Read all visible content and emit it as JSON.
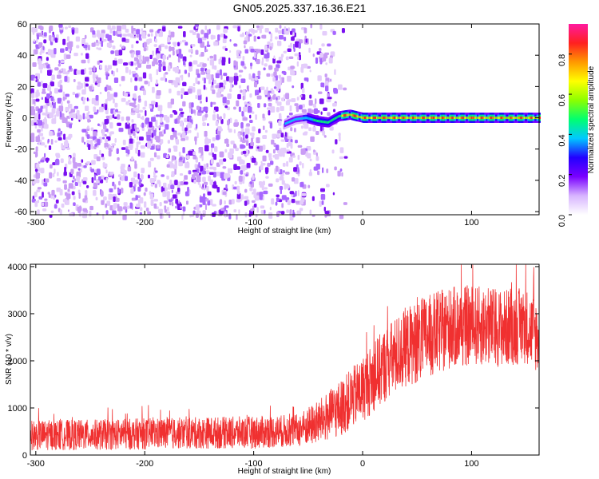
{
  "title": "GN05.2025.337.16.36.E21",
  "chart_data": [
    {
      "type": "heatmap",
      "xlabel": "Height of straight line (km)",
      "ylabel": "Frequency (Hz)",
      "xlim": [
        -305,
        162
      ],
      "ylim": [
        -62,
        60
      ],
      "xticks": [
        -300,
        -200,
        -100,
        0,
        100
      ],
      "yticks": [
        -60,
        -40,
        -20,
        0,
        20,
        40,
        60
      ],
      "colorbar": {
        "label": "Normalized spectral amplitude",
        "range": [
          0,
          0.95
        ],
        "ticks": [
          "0.0",
          "0.2",
          "0.4",
          "0.6",
          "0.8"
        ],
        "tick_values": [
          0.0,
          0.2,
          0.4,
          0.6,
          0.8
        ],
        "colors": [
          "#ffffff",
          "#d7b4ff",
          "#7a00ff",
          "#2200ff",
          "#00c8ff",
          "#00ff70",
          "#8cff00",
          "#ffff00",
          "#ff9900",
          "#ff2020",
          "#ff1aa0"
        ]
      },
      "ridge": [
        {
          "x": -72,
          "y": -4
        },
        {
          "x": -62,
          "y": -1
        },
        {
          "x": -52,
          "y": 0
        },
        {
          "x": -42,
          "y": -2
        },
        {
          "x": -32,
          "y": -3
        },
        {
          "x": -22,
          "y": 1
        },
        {
          "x": -12,
          "y": 2
        },
        {
          "x": 0,
          "y": 0
        },
        {
          "x": 50,
          "y": 0
        },
        {
          "x": 100,
          "y": 0
        },
        {
          "x": 162,
          "y": 0
        }
      ],
      "noise_region": {
        "x_start": -305,
        "x_end": -65,
        "fade_end": -15,
        "density": 0.55
      }
    },
    {
      "type": "line",
      "xlabel": "Height of straight line (km)",
      "ylabel": "SNR (10 * v/v)",
      "xlim": [
        -305,
        162
      ],
      "ylim": [
        0,
        4050
      ],
      "xticks": [
        -300,
        -200,
        -100,
        0,
        100
      ],
      "yticks": [
        0,
        1000,
        2000,
        3000,
        4000
      ],
      "color": "#f03030",
      "series": [
        {
          "trend": [
            {
              "x": -305,
              "y": 420
            },
            {
              "x": -250,
              "y": 430
            },
            {
              "x": -200,
              "y": 450
            },
            {
              "x": -150,
              "y": 470
            },
            {
              "x": -100,
              "y": 480
            },
            {
              "x": -60,
              "y": 520
            },
            {
              "x": -40,
              "y": 700
            },
            {
              "x": -20,
              "y": 1000
            },
            {
              "x": 0,
              "y": 1400
            },
            {
              "x": 20,
              "y": 1900
            },
            {
              "x": 40,
              "y": 2300
            },
            {
              "x": 60,
              "y": 2500
            },
            {
              "x": 80,
              "y": 2700
            },
            {
              "x": 100,
              "y": 2750
            },
            {
              "x": 130,
              "y": 2700
            },
            {
              "x": 150,
              "y": 2750
            },
            {
              "x": 162,
              "y": 2500
            }
          ],
          "noise_amplitude": [
            {
              "x": -305,
              "y": 320
            },
            {
              "x": -60,
              "y": 350
            },
            {
              "x": -20,
              "y": 600
            },
            {
              "x": 20,
              "y": 800
            },
            {
              "x": 60,
              "y": 900
            },
            {
              "x": 162,
              "y": 800
            }
          ]
        }
      ]
    }
  ]
}
